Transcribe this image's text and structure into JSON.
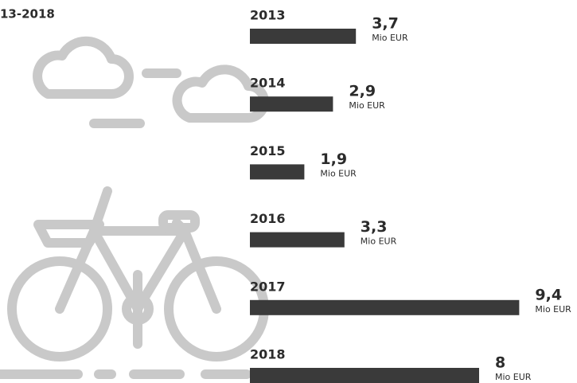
{
  "chart_data": {
    "type": "hbar",
    "title": "13-2018",
    "categories": [
      "2013",
      "2014",
      "2015",
      "2016",
      "2017",
      "2018"
    ],
    "values": [
      3.7,
      2.9,
      1.9,
      3.3,
      9.4,
      8
    ],
    "value_labels": [
      "3,7",
      "2,9",
      "1,9",
      "3,3",
      "9,4",
      "8"
    ],
    "unit": "Mio EUR",
    "color": "#3a3a3a",
    "xlim": [
      0,
      10
    ]
  }
}
